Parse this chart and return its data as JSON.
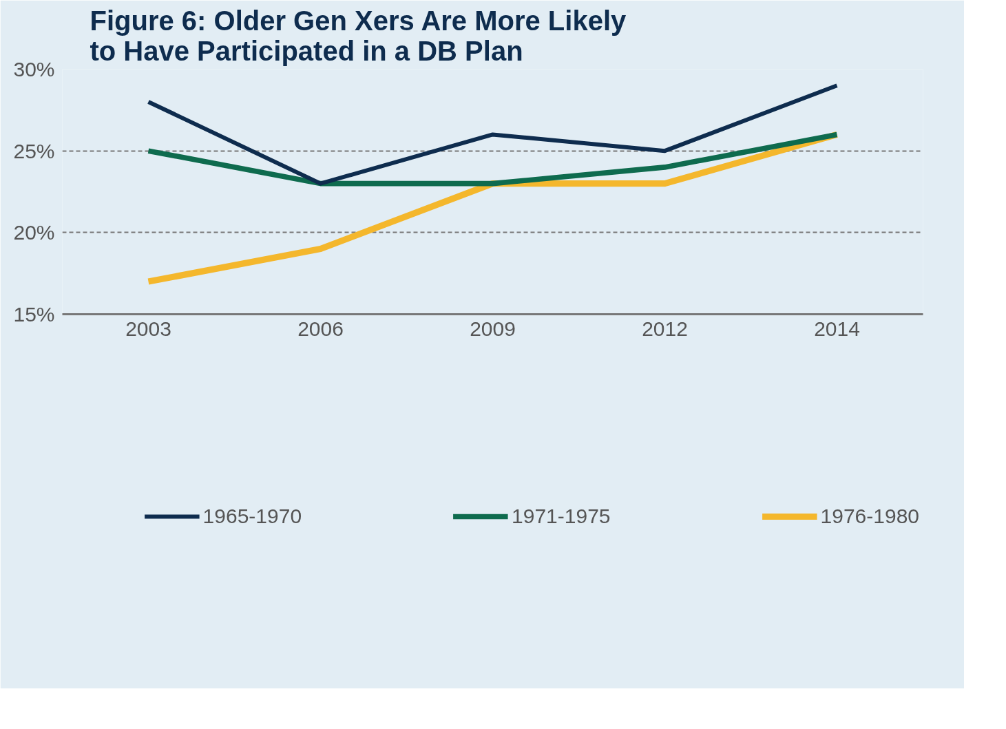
{
  "chart_data": {
    "type": "line",
    "title": "Figure 6: Older Gen Xers Are More Likely to Have Participated in a DB Plan",
    "categories": [
      "2003",
      "2006",
      "2009",
      "2012",
      "2014"
    ],
    "series": [
      {
        "name": "1965-1970",
        "color": "#0e2c4e",
        "values": [
          28,
          23,
          26,
          25,
          29
        ]
      },
      {
        "name": "1971-1975",
        "color": "#0e6b4e",
        "values": [
          25,
          23,
          23,
          24,
          26
        ]
      },
      {
        "name": "1976-1980",
        "color": "#f4b72c",
        "values": [
          17,
          19,
          23,
          23,
          26
        ]
      }
    ],
    "ylim": [
      15,
      30
    ],
    "yticks": [
      {
        "value": 15,
        "label": "15%"
      },
      {
        "value": 20,
        "label": "20%"
      },
      {
        "value": 25,
        "label": "25%"
      },
      {
        "value": 30,
        "label": "30%"
      }
    ],
    "grid": "y",
    "legend": "bottom",
    "marker": "none",
    "line_style": "solid"
  }
}
